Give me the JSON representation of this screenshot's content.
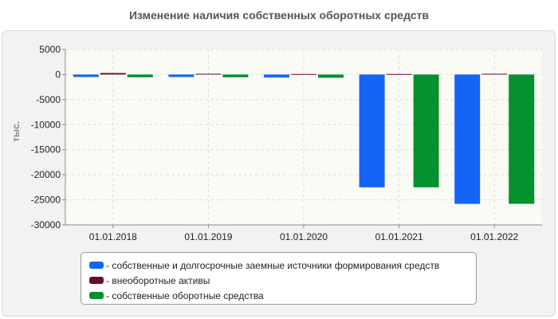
{
  "chart_data": {
    "type": "bar",
    "title": "Изменение наличия собственных оборотных средств",
    "ylabel": "тыс.",
    "xlabel": "",
    "categories": [
      "01.01.2018",
      "01.01.2019",
      "01.01.2020",
      "01.01.2021",
      "01.01.2022"
    ],
    "series": [
      {
        "name": "- собственные и долгосрочные заемные источники формирования средств",
        "color": "#1464f6",
        "values": [
          -500,
          -500,
          -600,
          -22500,
          -25800
        ]
      },
      {
        "name": "- внеоборотные активы",
        "color": "#6b0a30",
        "values": [
          300,
          150,
          100,
          100,
          150
        ]
      },
      {
        "name": "- собственные оборотные средства",
        "color": "#06912f",
        "values": [
          -550,
          -550,
          -650,
          -22500,
          -25800
        ]
      }
    ],
    "ylim": [
      -30000,
      5000
    ],
    "yticks": [
      "5000",
      "0",
      "-5000",
      "-10000",
      "-15000",
      "-20000",
      "-25000",
      "-30000"
    ],
    "grid": true,
    "legend_position": "bottom"
  }
}
